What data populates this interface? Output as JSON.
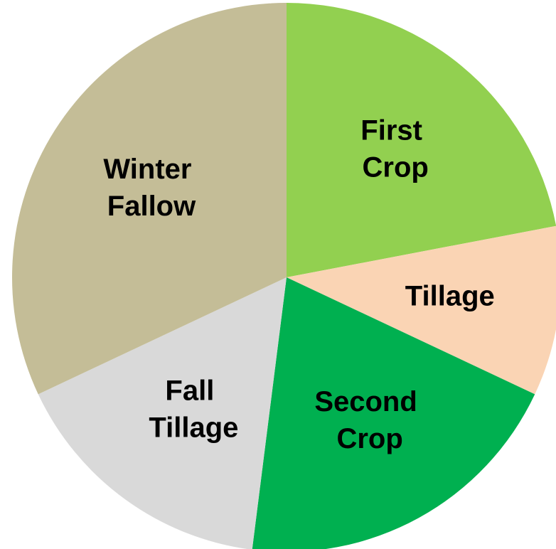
{
  "chart_data": {
    "type": "pie",
    "categories": [
      "First Crop",
      "Tillage",
      "Second Crop",
      "Fall Tillage",
      "Winter Fallow"
    ],
    "values": [
      22,
      10,
      20,
      16,
      32
    ],
    "colors": [
      "#92d050",
      "#fad4b4",
      "#00b050",
      "#d9d9d9",
      "#c4bd97"
    ]
  }
}
